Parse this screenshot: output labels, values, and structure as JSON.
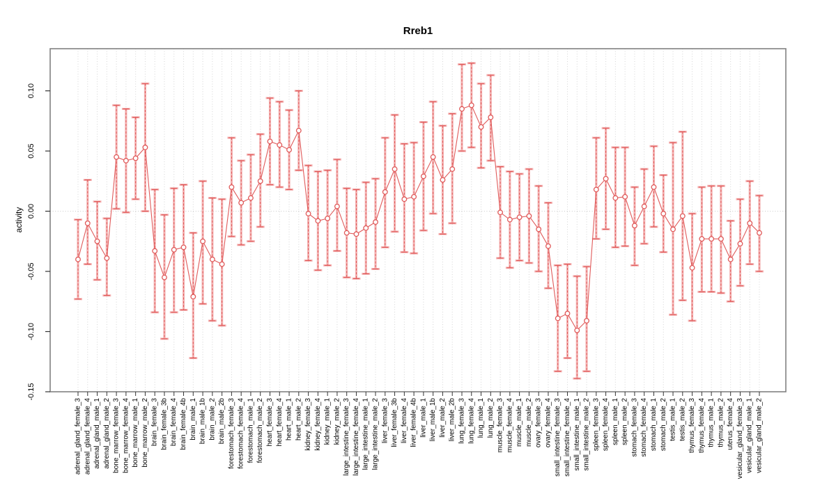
{
  "title": "Rreb1",
  "chart_data": {
    "type": "scatter",
    "title": "Rreb1",
    "xlabel": "",
    "ylabel": "activity",
    "ylim": [
      -0.15,
      0.135
    ],
    "grid": "vertical-dotted-per-category, dotted-zero-line",
    "legend": "none",
    "point_style": "open-circle-with-error-bars-connected-by-line",
    "color": "#e05a5a",
    "error_band_color": "#f2a3a3",
    "grid_color": "#d4d4d4",
    "frame_color": "#808080",
    "yticks": {
      "values": [
        -0.15,
        -0.1,
        -0.05,
        0.0,
        0.05,
        0.1
      ],
      "labels": [
        "-0.15",
        "-0.10",
        "-0.05",
        "0.00",
        "0.05",
        "0.10"
      ]
    },
    "categories": [
      "adrenal_gland_female_3",
      "adrenal_gland_female_4",
      "adrenal_gland_male_1",
      "adrenal_gland_male_2",
      "bone_marrow_female_3",
      "bone_marrow_female_4",
      "bone_marrow_male_1",
      "bone_marrow_male_2",
      "brain_female_3",
      "brain_female_3b",
      "brain_female_4",
      "brain_female_4b",
      "brain_male_1",
      "brain_male_1b",
      "brain_male_2",
      "brain_male_2b",
      "forestomach_female_3",
      "forestomach_female_4",
      "forestomach_male_1",
      "forestomach_male_2",
      "heart_female_3",
      "heart_female_4",
      "heart_male_1",
      "heart_male_2",
      "kidney_female_3",
      "kidney_female_4",
      "kidney_male_1",
      "kidney_male_2",
      "large_intestine_female_3",
      "large_intestine_female_4",
      "large_intestine_male_1",
      "large_intestine_male_2",
      "liver_female_3",
      "liver_female_3b",
      "liver_female_4",
      "liver_female_4b",
      "liver_male_1",
      "liver_male_1b",
      "liver_male_2",
      "liver_male_2b",
      "lung_female_3",
      "lung_female_4",
      "lung_male_1",
      "lung_male_2",
      "muscle_female_3",
      "muscle_female_4",
      "muscle_male_1",
      "muscle_male_2",
      "ovary_female_3",
      "ovary_female_4",
      "small_intestine_female_3",
      "small_intestine_female_4",
      "small_intestine_male_1",
      "small_intestine_male_2",
      "spleen_female_3",
      "spleen_female_4",
      "spleen_male_1",
      "spleen_male_2",
      "stomach_female_3",
      "stomach_female_4",
      "stomach_male_1",
      "stomach_male_2",
      "testis_male_1",
      "testis_male_2",
      "thymus_female_3",
      "thymus_female_4",
      "thymus_male_1",
      "thymus_male_2",
      "uterus_female_4",
      "vesicular_gland_female_3",
      "vesicular_gland_male_1",
      "vesicular_gland_male_2"
    ],
    "series": [
      {
        "name": "activity",
        "values": [
          -0.04,
          -0.01,
          -0.025,
          -0.039,
          0.045,
          0.042,
          0.044,
          0.053,
          -0.033,
          -0.055,
          -0.032,
          -0.03,
          -0.071,
          -0.025,
          -0.04,
          -0.044,
          0.02,
          0.007,
          0.011,
          0.025,
          0.058,
          0.055,
          0.051,
          0.067,
          -0.002,
          -0.008,
          -0.006,
          0.004,
          -0.018,
          -0.019,
          -0.014,
          -0.009,
          0.016,
          0.035,
          0.01,
          0.012,
          0.029,
          0.045,
          0.026,
          0.035,
          0.085,
          0.088,
          0.07,
          0.078,
          -0.001,
          -0.007,
          -0.005,
          -0.004,
          -0.015,
          -0.029,
          -0.089,
          -0.085,
          -0.099,
          -0.091,
          0.018,
          0.027,
          0.011,
          0.012,
          -0.012,
          0.004,
          0.02,
          -0.002,
          -0.015,
          -0.004,
          -0.047,
          -0.023,
          -0.023,
          -0.023,
          -0.04,
          -0.027,
          -0.01,
          -0.018
        ],
        "lower": [
          -0.073,
          -0.044,
          -0.057,
          -0.07,
          0.002,
          -0.001,
          0.01,
          0.0,
          -0.084,
          -0.106,
          -0.084,
          -0.082,
          -0.122,
          -0.077,
          -0.091,
          -0.095,
          -0.021,
          -0.028,
          -0.025,
          -0.013,
          0.022,
          0.02,
          0.018,
          0.034,
          -0.041,
          -0.049,
          -0.045,
          -0.033,
          -0.055,
          -0.056,
          -0.052,
          -0.048,
          -0.03,
          -0.017,
          -0.034,
          -0.035,
          -0.016,
          -0.002,
          -0.019,
          -0.01,
          0.05,
          0.053,
          0.036,
          0.042,
          -0.039,
          -0.047,
          -0.041,
          -0.043,
          -0.05,
          -0.064,
          -0.133,
          -0.122,
          -0.139,
          -0.133,
          -0.023,
          -0.015,
          -0.03,
          -0.029,
          -0.045,
          -0.027,
          -0.013,
          -0.034,
          -0.086,
          -0.074,
          -0.091,
          -0.067,
          -0.067,
          -0.068,
          -0.075,
          -0.062,
          -0.044,
          -0.05
        ],
        "upper": [
          -0.007,
          0.026,
          0.008,
          -0.006,
          0.088,
          0.085,
          0.078,
          0.106,
          0.018,
          -0.003,
          0.019,
          0.022,
          -0.018,
          0.025,
          0.011,
          0.01,
          0.061,
          0.042,
          0.047,
          0.064,
          0.094,
          0.091,
          0.084,
          0.1,
          0.038,
          0.033,
          0.034,
          0.043,
          0.019,
          0.018,
          0.024,
          0.027,
          0.061,
          0.08,
          0.056,
          0.057,
          0.074,
          0.091,
          0.071,
          0.081,
          0.122,
          0.123,
          0.106,
          0.113,
          0.037,
          0.033,
          0.031,
          0.035,
          0.021,
          0.007,
          -0.045,
          -0.044,
          -0.054,
          -0.046,
          0.061,
          0.069,
          0.053,
          0.053,
          0.02,
          0.035,
          0.054,
          0.03,
          0.057,
          0.066,
          -0.002,
          0.02,
          0.021,
          0.021,
          -0.008,
          0.01,
          0.025,
          0.013
        ]
      }
    ]
  }
}
